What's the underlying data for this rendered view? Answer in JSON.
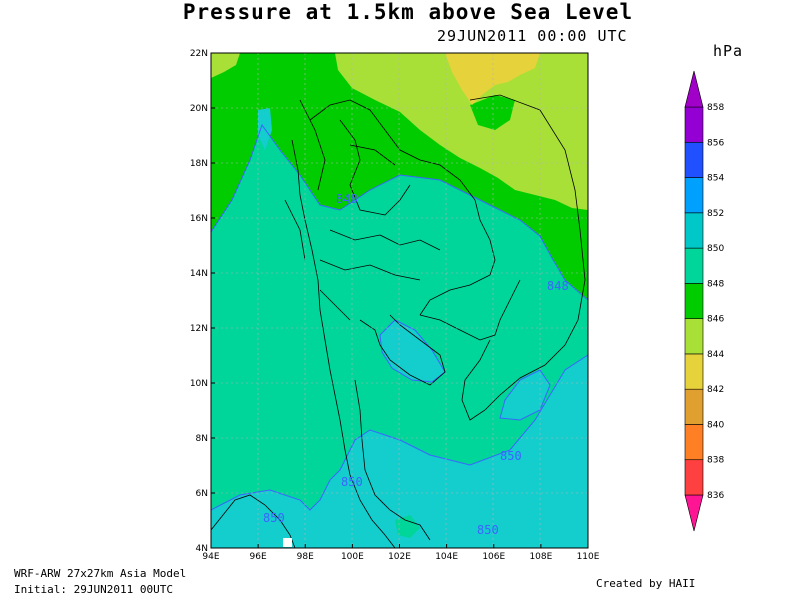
{
  "title": "Pressure at 1.5km above Sea Level",
  "valid_time": "29JUN2011 00:00 UTC",
  "units": "hPa",
  "model": "WRF-ARW 27x27km Asia Model",
  "initial": "Initial: 29JUN2011 00UTC",
  "credit": "Created by HAII",
  "map": {
    "lat_labels": [
      "4N",
      "6N",
      "8N",
      "10N",
      "12N",
      "14N",
      "16N",
      "18N",
      "20N",
      "22N"
    ],
    "lon_labels": [
      "94E",
      "96E",
      "98E",
      "100E",
      "102E",
      "104E",
      "106E",
      "108E",
      "110E"
    ],
    "contour_labels": [
      "848",
      "848",
      "850",
      "850",
      "850",
      "850"
    ]
  },
  "colorbar": {
    "levels": [
      "836",
      "838",
      "840",
      "842",
      "844",
      "846",
      "848",
      "850",
      "852",
      "854",
      "856",
      "858"
    ],
    "colors": [
      "#ff1493",
      "#ff4040",
      "#ff7f24",
      "#e0a030",
      "#e6d23a",
      "#a8e038",
      "#00cc00",
      "#00d59a",
      "#00c8c8",
      "#00a0ff",
      "#2050ff",
      "#9400d3",
      "#a000c8"
    ]
  },
  "colors": {
    "ocean": "#14cdcd",
    "c850": "#00d59a",
    "c848": "#00cc00",
    "c846": "#a8e038",
    "c844": "#e6d23a",
    "contour": "#3c64ff"
  }
}
